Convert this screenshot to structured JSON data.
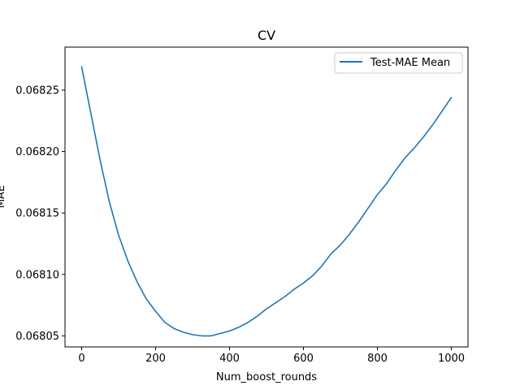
{
  "chart_data": {
    "type": "line",
    "title": "CV",
    "xlabel": "Num_boost_rounds",
    "ylabel": "MAE",
    "xlim": [
      -45,
      1045
    ],
    "ylim": [
      0.068041,
      0.068285
    ],
    "xticks": [
      0,
      200,
      400,
      600,
      800,
      1000
    ],
    "xtick_labels": [
      "0",
      "200",
      "400",
      "600",
      "800",
      "1000"
    ],
    "yticks": [
      0.06805,
      0.0681,
      0.06815,
      0.0682,
      0.06825
    ],
    "ytick_labels": [
      "0.06805",
      "0.06810",
      "0.06815",
      "0.06820",
      "0.06825"
    ],
    "grid": false,
    "legend_position": "top-right",
    "series": [
      {
        "name": "Test-MAE Mean",
        "color": "#1f77b4",
        "x": [
          0,
          25,
          50,
          75,
          100,
          125,
          150,
          175,
          200,
          225,
          250,
          275,
          300,
          325,
          350,
          375,
          400,
          425,
          450,
          475,
          500,
          525,
          550,
          575,
          600,
          625,
          650,
          675,
          700,
          725,
          750,
          775,
          800,
          825,
          850,
          875,
          900,
          925,
          950,
          975,
          1000
        ],
        "y": [
          0.068269,
          0.068231,
          0.068193,
          0.068159,
          0.068132,
          0.068111,
          0.068094,
          0.06808,
          0.06807,
          0.068061,
          0.068056,
          0.068053,
          0.068051,
          0.06805,
          0.06805,
          0.068052,
          0.068054,
          0.068057,
          0.068061,
          0.068066,
          0.068072,
          0.068077,
          0.068082,
          0.068088,
          0.068093,
          0.068099,
          0.068107,
          0.068117,
          0.068124,
          0.068133,
          0.068143,
          0.068154,
          0.068165,
          0.068174,
          0.068185,
          0.068195,
          0.068203,
          0.068212,
          0.068222,
          0.068233,
          0.068244
        ]
      }
    ]
  }
}
